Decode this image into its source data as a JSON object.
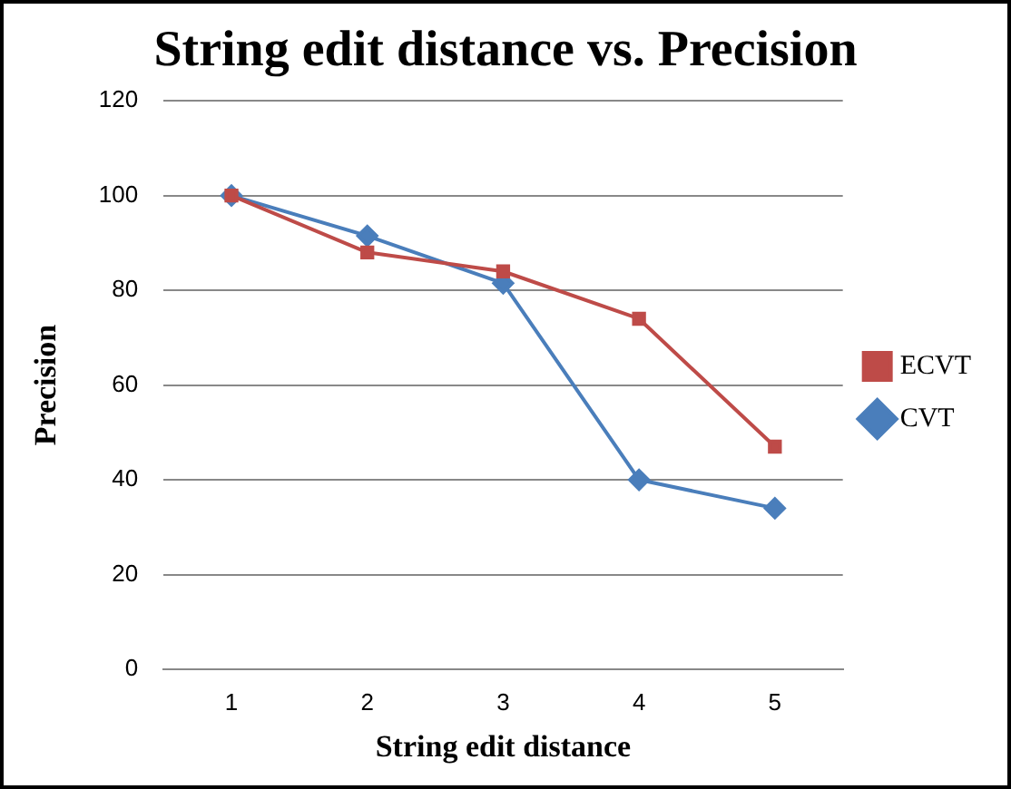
{
  "chart_data": {
    "type": "line",
    "title": "String edit distance vs. Precision",
    "xlabel": "String edit distance",
    "ylabel": "Precision",
    "categories": [
      "1",
      "2",
      "3",
      "4",
      "5"
    ],
    "series": [
      {
        "name": "CVT",
        "color": "#4a7ebb",
        "marker": "diamond",
        "values": [
          100,
          91.5,
          81.5,
          40,
          34
        ]
      },
      {
        "name": "ECVT",
        "color": "#be4b48",
        "marker": "square",
        "values": [
          100,
          88,
          84,
          74,
          47
        ]
      }
    ],
    "ylim": [
      0,
      120
    ],
    "yticks": [
      0,
      20,
      40,
      60,
      80,
      100,
      120
    ],
    "grid": "y",
    "legend": "right",
    "line_style": "solid"
  }
}
